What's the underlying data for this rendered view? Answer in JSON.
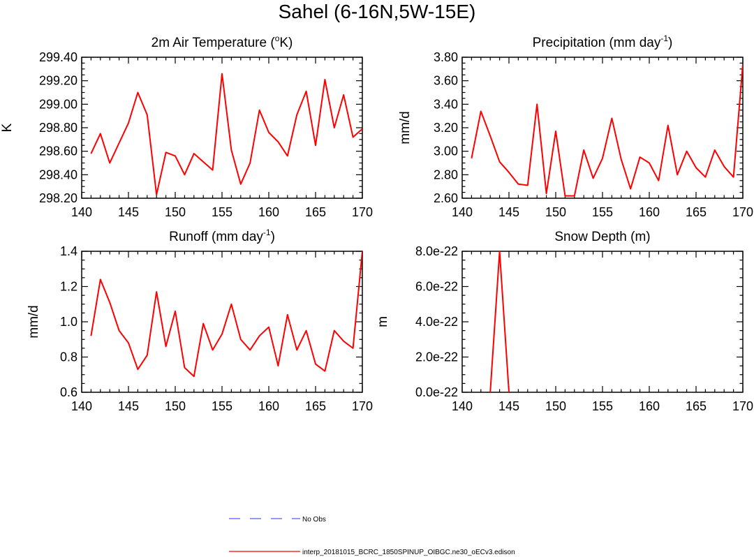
{
  "page": {
    "title": "Sahel (6-16N,5W-15E)"
  },
  "legend": {
    "items": [
      {
        "label": "No Obs",
        "color": "#4c5cff",
        "style": "dashed"
      },
      {
        "label": "interp_20181015_BCRC_1850SPINUP_OIBGC.ne30_oECv3.edison",
        "color": "#ff0000",
        "style": "solid"
      }
    ]
  },
  "colors": {
    "series": "#ff0000",
    "obs": "#4c5cff",
    "axis": "#000000"
  },
  "chart_data": [
    {
      "id": "temperature",
      "type": "line",
      "title": "2m Air Temperature (°K)",
      "title_main": "2m Air Temperature (",
      "title_sup": "o",
      "title_end": "K)",
      "xlabel": "",
      "ylabel": "K",
      "xlim": [
        140,
        170
      ],
      "ylim": [
        298.2,
        299.4
      ],
      "xticks": [
        140,
        145,
        150,
        155,
        160,
        165,
        170
      ],
      "xtick_labels": [
        "140",
        "145",
        "150",
        "155",
        "160",
        "165",
        "170"
      ],
      "yticks": [
        298.2,
        298.4,
        298.6,
        298.8,
        299.0,
        299.2,
        299.4
      ],
      "ytick_labels": [
        "298.20",
        "298.40",
        "298.60",
        "298.80",
        "299.00",
        "299.20",
        "299.40"
      ],
      "x": [
        141,
        142,
        143,
        144,
        145,
        146,
        147,
        148,
        149,
        150,
        151,
        152,
        153,
        154,
        155,
        156,
        157,
        158,
        159,
        160,
        161,
        162,
        163,
        164,
        165,
        166,
        167,
        168,
        169,
        170
      ],
      "series": [
        {
          "name": "interp_20181015_BCRC_1850SPINUP_OIBGC.ne30_oECv3.edison",
          "values": [
            298.58,
            298.75,
            298.5,
            298.67,
            298.84,
            299.1,
            298.91,
            298.23,
            298.59,
            298.56,
            298.4,
            298.58,
            298.51,
            298.44,
            299.26,
            298.61,
            298.32,
            298.5,
            298.95,
            298.76,
            298.68,
            298.56,
            298.91,
            299.11,
            298.65,
            299.21,
            298.8,
            299.08,
            298.72,
            298.79
          ]
        }
      ]
    },
    {
      "id": "precipitation",
      "type": "line",
      "title": "Precipitation (mm day-1)",
      "title_main": "Precipitation (mm day",
      "title_sup": "-1",
      "title_end": ")",
      "xlabel": "",
      "ylabel": "mm/d",
      "xlim": [
        140,
        170
      ],
      "ylim": [
        2.6,
        3.8
      ],
      "xticks": [
        140,
        145,
        150,
        155,
        160,
        165,
        170
      ],
      "xtick_labels": [
        "140",
        "145",
        "150",
        "155",
        "160",
        "165",
        "170"
      ],
      "yticks": [
        2.6,
        2.8,
        3.0,
        3.2,
        3.4,
        3.6,
        3.8
      ],
      "ytick_labels": [
        "2.60",
        "2.80",
        "3.00",
        "3.20",
        "3.40",
        "3.60",
        "3.80"
      ],
      "x": [
        141,
        142,
        143,
        144,
        145,
        146,
        147,
        148,
        149,
        150,
        151,
        152,
        153,
        154,
        155,
        156,
        157,
        158,
        159,
        160,
        161,
        162,
        163,
        164,
        165,
        166,
        167,
        168,
        169,
        170
      ],
      "series": [
        {
          "name": "interp_20181015_BCRC_1850SPINUP_OIBGC.ne30_oECv3.edison",
          "values": [
            2.94,
            3.34,
            3.13,
            2.91,
            2.82,
            2.72,
            2.71,
            3.4,
            2.64,
            3.17,
            2.62,
            2.62,
            3.01,
            2.77,
            2.94,
            3.28,
            2.93,
            2.68,
            2.95,
            2.9,
            2.75,
            3.22,
            2.8,
            3.0,
            2.86,
            2.78,
            3.01,
            2.87,
            2.78,
            3.74
          ]
        }
      ]
    },
    {
      "id": "runoff",
      "type": "line",
      "title": "Runoff (mm day-1)",
      "title_main": "Runoff (mm day",
      "title_sup": "-1",
      "title_end": ")",
      "xlabel": "",
      "ylabel": "mm/d",
      "xlim": [
        140,
        170
      ],
      "ylim": [
        0.6,
        1.4
      ],
      "xticks": [
        140,
        145,
        150,
        155,
        160,
        165,
        170
      ],
      "xtick_labels": [
        "140",
        "145",
        "150",
        "155",
        "160",
        "165",
        "170"
      ],
      "yticks": [
        0.6,
        0.8,
        1.0,
        1.2,
        1.4
      ],
      "ytick_labels": [
        "0.6",
        "0.8",
        "1.0",
        "1.2",
        "1.4"
      ],
      "x": [
        141,
        142,
        143,
        144,
        145,
        146,
        147,
        148,
        149,
        150,
        151,
        152,
        153,
        154,
        155,
        156,
        157,
        158,
        159,
        160,
        161,
        162,
        163,
        164,
        165,
        166,
        167,
        168,
        169,
        170
      ],
      "series": [
        {
          "name": "interp_20181015_BCRC_1850SPINUP_OIBGC.ne30_oECv3.edison",
          "values": [
            0.92,
            1.24,
            1.11,
            0.95,
            0.88,
            0.73,
            0.81,
            1.17,
            0.86,
            1.06,
            0.74,
            0.69,
            0.99,
            0.84,
            0.93,
            1.1,
            0.9,
            0.84,
            0.92,
            0.97,
            0.75,
            1.04,
            0.84,
            0.95,
            0.76,
            0.72,
            0.95,
            0.89,
            0.85,
            1.4
          ]
        }
      ]
    },
    {
      "id": "snow-depth",
      "type": "line",
      "title": "Snow Depth (m)",
      "title_main": "Snow Depth (m)",
      "title_sup": "",
      "title_end": "",
      "xlabel": "",
      "ylabel": "m",
      "xlim": [
        140,
        170
      ],
      "ylim": [
        0,
        8e-22
      ],
      "xticks": [
        140,
        145,
        150,
        155,
        160,
        165,
        170
      ],
      "xtick_labels": [
        "140",
        "145",
        "150",
        "155",
        "160",
        "165",
        "170"
      ],
      "yticks": [
        0,
        2e-22,
        4e-22,
        6e-22,
        8e-22
      ],
      "ytick_labels": [
        "0.0e-22",
        "2.0e-22",
        "4.0e-22",
        "6.0e-22",
        "8.0e-22"
      ],
      "x": [
        141,
        142,
        143,
        144,
        145,
        146,
        147,
        148,
        149,
        150,
        151,
        152,
        153,
        154,
        155,
        156,
        157,
        158,
        159,
        160,
        161,
        162,
        163,
        164,
        165,
        166,
        167,
        168,
        169,
        170
      ],
      "series": [
        {
          "name": "interp_20181015_BCRC_1850SPINUP_OIBGC.ne30_oECv3.edison",
          "values": [
            0,
            0,
            0,
            8e-22,
            0,
            0,
            0,
            0,
            0,
            0,
            0,
            0,
            0,
            0,
            0,
            0,
            0,
            0,
            0,
            0,
            0,
            0,
            0,
            0,
            0,
            0,
            0,
            0,
            0,
            0
          ]
        }
      ]
    }
  ]
}
